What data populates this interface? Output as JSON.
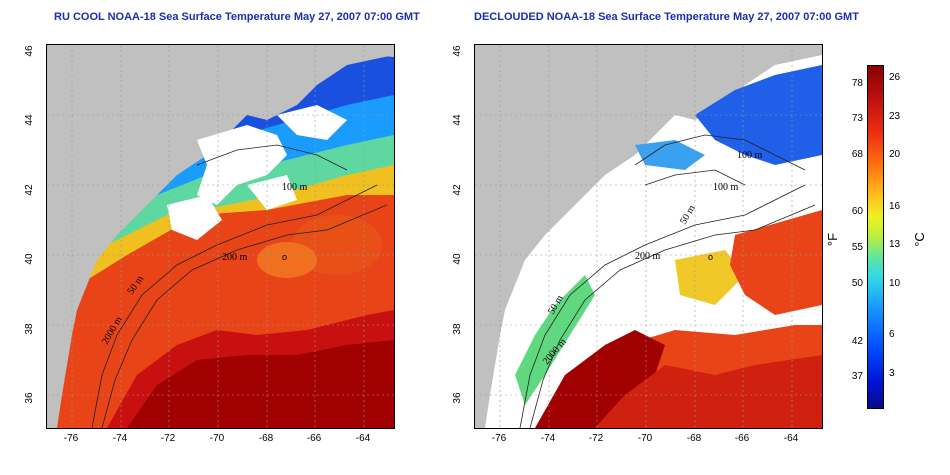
{
  "titles": {
    "left": "RU COOL NOAA-18 Sea Surface Temperature May 27, 2007 07:00 GMT",
    "right": "DECLOUDED NOAA-18 Sea Surface Temperature May 27, 2007 07:00 GMT"
  },
  "axes": {
    "lat_ticks": [
      "46",
      "44",
      "42",
      "40",
      "38",
      "36"
    ],
    "lon_ticks": [
      "-76",
      "-74",
      "-72",
      "-70",
      "-68",
      "-66",
      "-64"
    ]
  },
  "contours": {
    "left": [
      "200 m",
      "200 m",
      "100 m",
      "2000 m",
      "50 m",
      "50 m"
    ],
    "right": [
      "100 m",
      "100 m",
      "50 m",
      "200 m",
      "50 m",
      "2000 m"
    ]
  },
  "marker": "o",
  "colorbar": {
    "fahrenheit_ticks": [
      "78",
      "73",
      "68",
      "60",
      "55",
      "50",
      "42",
      "37"
    ],
    "celsius_ticks": [
      "26",
      "23",
      "20",
      "16",
      "13",
      "10",
      "6",
      "3"
    ],
    "unit_f": "°F",
    "unit_c": "°C"
  },
  "colors": {
    "land": "#c0c0c0",
    "cloud": "#ffffff",
    "cold": "#1a50e0",
    "warm": "#e02010",
    "gulf_stream": "#a00000",
    "title": "#1a2fb0"
  }
}
